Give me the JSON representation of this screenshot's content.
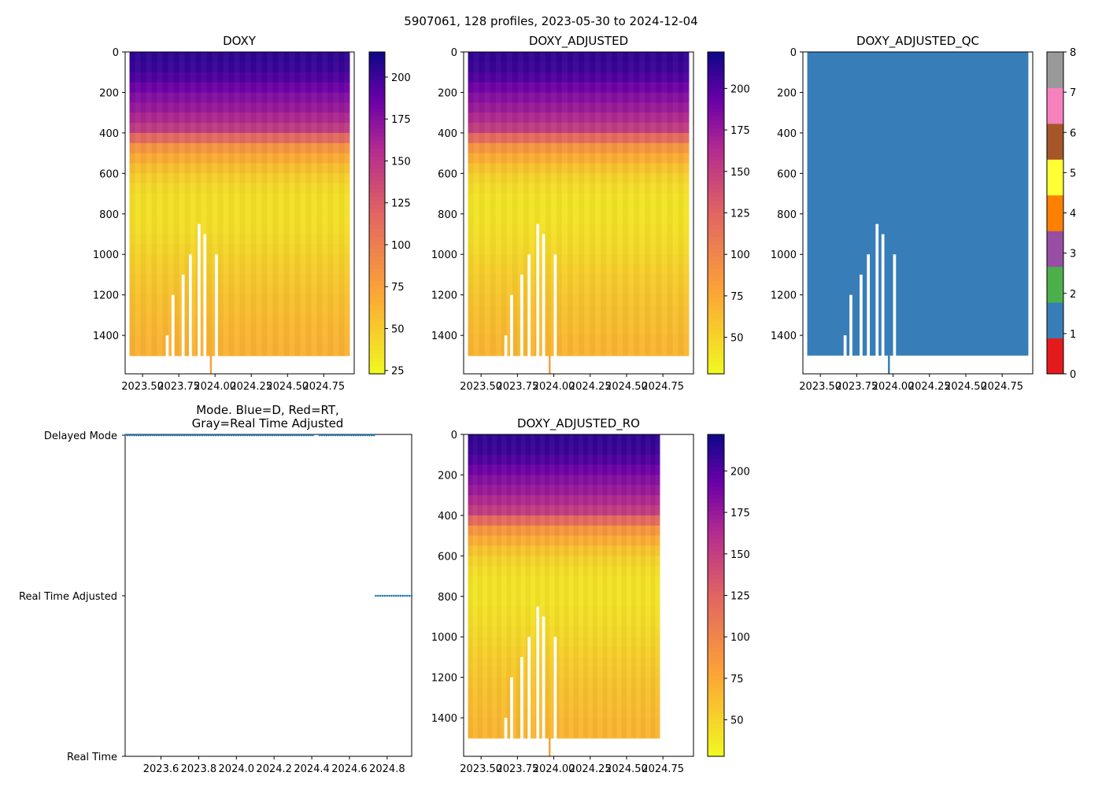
{
  "figure": {
    "suptitle": "5907061, 128 profiles, 2023-05-30 to 2024-12-04"
  },
  "chart_data": [
    {
      "id": "doxy",
      "type": "heatmap",
      "title": "DOXY",
      "xlabel": "",
      "ylabel": "",
      "xlim": [
        2023.38,
        2024.96
      ],
      "ylim": [
        1590,
        0
      ],
      "x_ticks": [
        2023.5,
        2023.75,
        2024.0,
        2024.25,
        2024.5,
        2024.75
      ],
      "x_tick_labels": [
        "2023.50",
        "2023.75",
        "2024.00",
        "2024.25",
        "2024.50",
        "2024.75"
      ],
      "y_ticks": [
        0,
        200,
        400,
        600,
        800,
        1000,
        1200,
        1400
      ],
      "y_tick_labels": [
        "0",
        "200",
        "400",
        "600",
        "800",
        "1000",
        "1200",
        "1400"
      ],
      "colormap": "plasma_r",
      "colorbar_range": [
        23,
        215
      ],
      "colorbar_ticks": [
        25,
        50,
        75,
        100,
        125,
        150,
        175,
        200
      ],
      "colorbar_tick_labels": [
        "25",
        "50",
        "75",
        "100",
        "125",
        "150",
        "175",
        "200"
      ],
      "depth_profile": [
        [
          0,
          205
        ],
        [
          100,
          200
        ],
        [
          200,
          180
        ],
        [
          300,
          165
        ],
        [
          400,
          140
        ],
        [
          450,
          90
        ],
        [
          550,
          60
        ],
        [
          650,
          42
        ],
        [
          750,
          36
        ],
        [
          850,
          38
        ],
        [
          1000,
          45
        ],
        [
          1200,
          55
        ],
        [
          1400,
          62
        ],
        [
          1500,
          65
        ]
      ],
      "max_depth": 1500,
      "x_start": 2023.41,
      "x_end": 2024.93,
      "gaps": [
        [
          2023.66,
          2023.68,
          1400
        ],
        [
          2023.7,
          2023.72,
          1200
        ],
        [
          2023.77,
          2023.79,
          1100
        ],
        [
          2023.82,
          2023.84,
          1000
        ],
        [
          2023.88,
          2023.9,
          850
        ],
        [
          2023.92,
          2023.94,
          900
        ],
        [
          2024.0,
          2024.02,
          1000
        ]
      ],
      "spikes": [
        [
          2023.97,
          1590
        ]
      ]
    },
    {
      "id": "doxy_adjusted",
      "type": "heatmap",
      "title": "DOXY_ADJUSTED",
      "xlabel": "",
      "ylabel": "",
      "xlim": [
        2023.38,
        2024.96
      ],
      "ylim": [
        1590,
        0
      ],
      "x_ticks": [
        2023.5,
        2023.75,
        2024.0,
        2024.25,
        2024.5,
        2024.75
      ],
      "x_tick_labels": [
        "2023.50",
        "2023.75",
        "2024.00",
        "2024.25",
        "2024.50",
        "2024.75"
      ],
      "y_ticks": [
        0,
        200,
        400,
        600,
        800,
        1000,
        1200,
        1400
      ],
      "y_tick_labels": [
        "0",
        "200",
        "400",
        "600",
        "800",
        "1000",
        "1200",
        "1400"
      ],
      "colormap": "plasma_r",
      "colorbar_range": [
        28,
        222
      ],
      "colorbar_ticks": [
        50,
        75,
        100,
        125,
        150,
        175,
        200
      ],
      "colorbar_tick_labels": [
        "50",
        "75",
        "100",
        "125",
        "150",
        "175",
        "200"
      ],
      "depth_profile": [
        [
          0,
          212
        ],
        [
          100,
          206
        ],
        [
          200,
          186
        ],
        [
          300,
          170
        ],
        [
          400,
          145
        ],
        [
          450,
          95
        ],
        [
          550,
          64
        ],
        [
          650,
          45
        ],
        [
          750,
          39
        ],
        [
          850,
          41
        ],
        [
          1000,
          48
        ],
        [
          1200,
          58
        ],
        [
          1400,
          65
        ],
        [
          1500,
          68
        ]
      ],
      "max_depth": 1500,
      "x_start": 2023.41,
      "x_end": 2024.93,
      "gaps": [
        [
          2023.66,
          2023.68,
          1400
        ],
        [
          2023.7,
          2023.72,
          1200
        ],
        [
          2023.77,
          2023.79,
          1100
        ],
        [
          2023.82,
          2023.84,
          1000
        ],
        [
          2023.88,
          2023.9,
          850
        ],
        [
          2023.92,
          2023.94,
          900
        ],
        [
          2024.0,
          2024.02,
          1000
        ]
      ],
      "spikes": [
        [
          2023.97,
          1590
        ]
      ]
    },
    {
      "id": "doxy_adjusted_qc",
      "type": "heatmap",
      "title": "DOXY_ADJUSTED_QC",
      "xlabel": "",
      "ylabel": "",
      "xlim": [
        2023.38,
        2024.96
      ],
      "ylim": [
        1590,
        0
      ],
      "x_ticks": [
        2023.5,
        2023.75,
        2024.0,
        2024.25,
        2024.5,
        2024.75
      ],
      "x_tick_labels": [
        "2023.50",
        "2023.75",
        "2024.00",
        "2024.25",
        "2024.50",
        "2024.75"
      ],
      "y_ticks": [
        0,
        200,
        400,
        600,
        800,
        1000,
        1200,
        1400
      ],
      "y_tick_labels": [
        "0",
        "200",
        "400",
        "600",
        "800",
        "1000",
        "1200",
        "1400"
      ],
      "qc_value_everywhere": 1,
      "fill_color": "#377eb8",
      "max_depth": 1500,
      "x_start": 2023.41,
      "x_end": 2024.93,
      "gaps": [
        [
          2023.66,
          2023.68,
          1400
        ],
        [
          2023.7,
          2023.72,
          1200
        ],
        [
          2023.77,
          2023.79,
          1100
        ],
        [
          2023.82,
          2023.84,
          1000
        ],
        [
          2023.88,
          2023.9,
          850
        ],
        [
          2023.92,
          2023.94,
          900
        ],
        [
          2024.0,
          2024.02,
          1000
        ]
      ],
      "spikes": [
        [
          2023.97,
          1590
        ]
      ],
      "colorbar": {
        "range": [
          0,
          8
        ],
        "ticks": [
          0,
          1,
          2,
          3,
          4,
          5,
          6,
          7,
          8
        ],
        "tick_labels": [
          "0",
          "1",
          "2",
          "3",
          "4",
          "5",
          "6",
          "7",
          "8"
        ],
        "colors": [
          "#e41a1c",
          "#377eb8",
          "#4daf4a",
          "#984ea3",
          "#ff7f00",
          "#ffff33",
          "#a65628",
          "#f781bf",
          "#999999"
        ]
      }
    },
    {
      "id": "mode",
      "type": "scatter",
      "title_lines": [
        "Mode. Blue=D, Red=RT,",
        "Gray=Real Time Adjusted"
      ],
      "xlabel": "",
      "ylabel": "",
      "xlim": [
        2023.41,
        2024.93
      ],
      "y_categories": [
        "Real Time",
        "Real Time Adjusted",
        "Delayed Mode"
      ],
      "x_ticks": [
        2023.6,
        2023.8,
        2024.0,
        2024.2,
        2024.4,
        2024.6,
        2024.8
      ],
      "x_tick_labels": [
        "2023.6",
        "2023.8",
        "2024.0",
        "2024.2",
        "2024.4",
        "2024.6",
        "2024.8"
      ],
      "series": [
        {
          "name": "Delayed Mode",
          "category_index": 2,
          "x_start": 2023.41,
          "x_end": 2024.73,
          "count": 111,
          "skip_range": [
            2024.415,
            2024.435
          ]
        },
        {
          "name": "Real Time Adjusted",
          "category_index": 1,
          "x_start": 2024.74,
          "x_end": 2024.93,
          "count": 17
        }
      ],
      "marker_color": "#1f77b4"
    },
    {
      "id": "doxy_adjusted_ro",
      "type": "heatmap",
      "title": "DOXY_ADJUSTED_RO",
      "xlabel": "",
      "ylabel": "",
      "xlim": [
        2023.38,
        2024.96
      ],
      "ylim": [
        1590,
        0
      ],
      "x_ticks": [
        2023.5,
        2023.75,
        2024.0,
        2024.25,
        2024.5,
        2024.75
      ],
      "x_tick_labels": [
        "2023.50",
        "2023.75",
        "2024.00",
        "2024.25",
        "2024.50",
        "2024.75"
      ],
      "y_ticks": [
        0,
        200,
        400,
        600,
        800,
        1000,
        1200,
        1400
      ],
      "y_tick_labels": [
        "0",
        "200",
        "400",
        "600",
        "800",
        "1000",
        "1200",
        "1400"
      ],
      "colormap": "plasma_r",
      "colorbar_range": [
        28,
        222
      ],
      "colorbar_ticks": [
        50,
        75,
        100,
        125,
        150,
        175,
        200
      ],
      "colorbar_tick_labels": [
        "50",
        "75",
        "100",
        "125",
        "150",
        "175",
        "200"
      ],
      "depth_profile": [
        [
          0,
          212
        ],
        [
          100,
          206
        ],
        [
          200,
          186
        ],
        [
          300,
          170
        ],
        [
          400,
          145
        ],
        [
          450,
          95
        ],
        [
          550,
          64
        ],
        [
          650,
          45
        ],
        [
          750,
          39
        ],
        [
          850,
          41
        ],
        [
          1000,
          48
        ],
        [
          1200,
          58
        ],
        [
          1400,
          65
        ],
        [
          1500,
          68
        ]
      ],
      "max_depth": 1500,
      "x_start": 2023.41,
      "x_end": 2024.73,
      "gaps": [
        [
          2023.66,
          2023.68,
          1400
        ],
        [
          2023.7,
          2023.72,
          1200
        ],
        [
          2023.77,
          2023.79,
          1100
        ],
        [
          2023.82,
          2023.84,
          1000
        ],
        [
          2023.88,
          2023.9,
          850
        ],
        [
          2023.92,
          2023.94,
          900
        ],
        [
          2024.0,
          2024.02,
          1000
        ]
      ],
      "spikes": [
        [
          2023.97,
          1590
        ]
      ]
    }
  ]
}
